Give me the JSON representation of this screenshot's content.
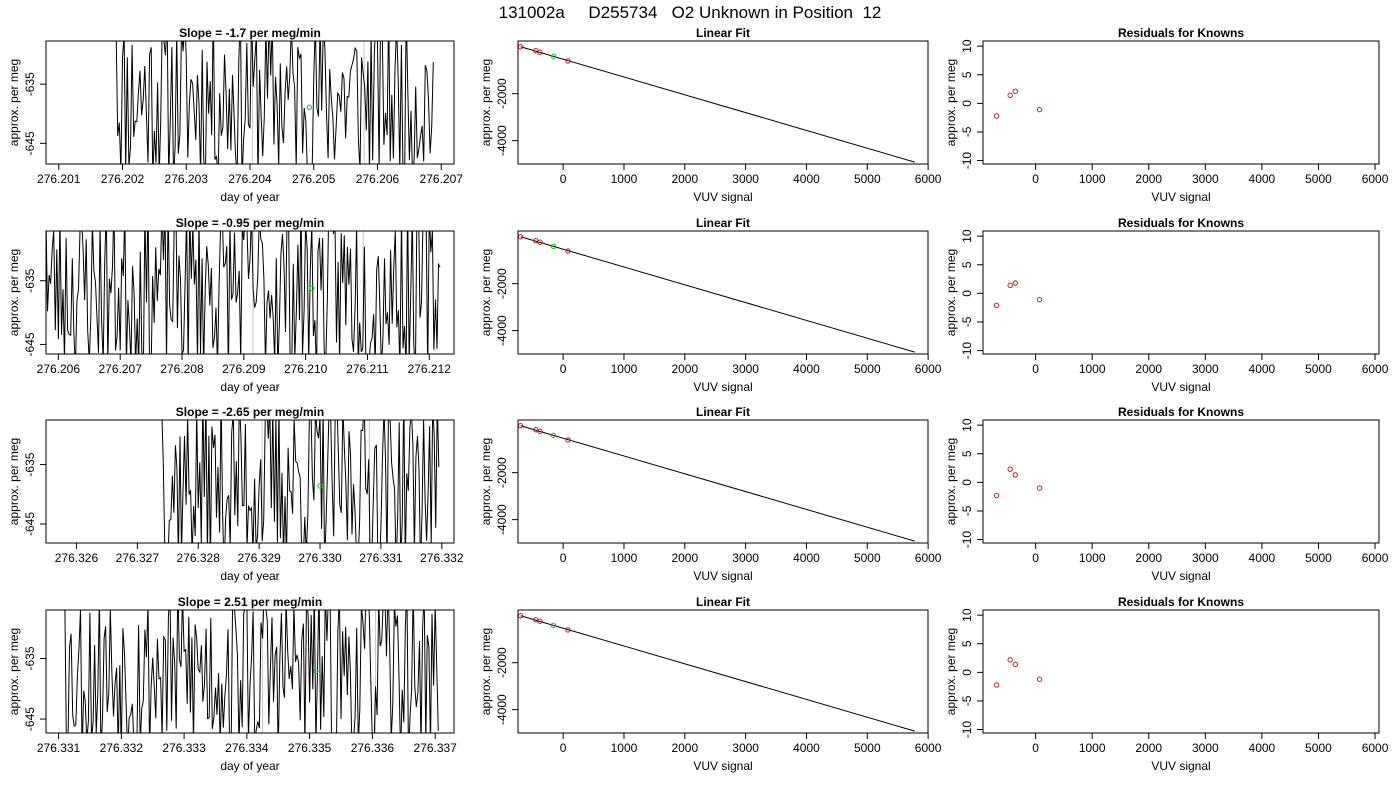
{
  "figure_title": "131002a     D255734   O2 Unknown in Position  12",
  "chart_data": [
    {
      "type": "line",
      "title": "Slope =  -1.7  per meg/min",
      "xlabel": "day of year",
      "ylabel": "approx. per meg",
      "xlim": [
        276.2008,
        276.2072
      ],
      "ylim": [
        -648.5,
        -627.7
      ],
      "xticks": [
        "276.201",
        "276.202",
        "276.203",
        "276.204",
        "276.205",
        "276.206",
        "276.207"
      ],
      "yticks": [
        "-645",
        "-635"
      ],
      "grid": false,
      "trace_start": 276.2019,
      "trace_end": 276.20688,
      "trace_step": 2.5e-05,
      "vlines": [
        276.20404,
        276.20579
      ],
      "highlight_point": {
        "x": 276.20493,
        "y": -638.9
      },
      "series_seed": 11,
      "series_level": -637
    },
    {
      "type": "line",
      "title": "Linear Fit",
      "xlabel": "VUV signal",
      "ylabel": "approx. per meg",
      "xlim": [
        -742,
        5998
      ],
      "ylim": [
        -4995,
        244
      ],
      "xticks": [
        "0",
        "1000",
        "2000",
        "3000",
        "4000",
        "5000",
        "6000"
      ],
      "yticks": [
        "-4000",
        "-2000"
      ],
      "grid": false,
      "fit_line": {
        "x": [
          -700,
          5780
        ],
        "y": [
          0,
          -4915
        ]
      },
      "known_points": {
        "x": [
          -700,
          -450,
          -380,
          80
        ],
        "y": [
          0,
          -170,
          -235,
          -605
        ]
      },
      "unknown_points": {
        "x": [
          -160
        ],
        "y": [
          -410
        ]
      }
    },
    {
      "type": "scatter",
      "title": "Residuals for Knowns",
      "xlabel": "VUV signal",
      "ylabel": "approx. per meg",
      "xlim": [
        -930,
        6070
      ],
      "ylim": [
        -10.6,
        10.9
      ],
      "xticks": [
        "0",
        "1000",
        "2000",
        "3000",
        "4000",
        "5000",
        "6000"
      ],
      "yticks": [
        "-10",
        "-5",
        "0",
        "5",
        "10"
      ],
      "grid": false,
      "x": [
        -690,
        -450,
        -360,
        70
      ],
      "y": [
        -2.2,
        1.4,
        2.1,
        -1.1
      ]
    },
    {
      "type": "line",
      "title": "Slope =  -0.95  per meg/min",
      "xlabel": "day of year",
      "ylabel": "approx. per meg",
      "xlim": [
        276.2058,
        276.2124
      ],
      "ylim": [
        -646.5,
        -627.2
      ],
      "xticks": [
        "276.206",
        "276.207",
        "276.208",
        "276.209",
        "276.210",
        "276.211",
        "276.212"
      ],
      "yticks": [
        "-645",
        "-635"
      ],
      "grid": false,
      "trace_start": 276.2058,
      "trace_end": 276.21218,
      "trace_step": 2.5e-05,
      "vlines": [
        276.20915,
        276.21093
      ],
      "highlight_point": {
        "x": 276.2101,
        "y": -636.2
      },
      "series_seed": 23,
      "series_level": -636
    },
    {
      "type": "line",
      "title": "Linear Fit",
      "xlabel": "VUV signal",
      "ylabel": "approx. per meg",
      "xlim": [
        -742,
        5998
      ],
      "ylim": [
        -4995,
        244
      ],
      "xticks": [
        "0",
        "1000",
        "2000",
        "3000",
        "4000",
        "5000",
        "6000"
      ],
      "yticks": [
        "-4000",
        "-2000"
      ],
      "grid": false,
      "fit_line": {
        "x": [
          -700,
          5780
        ],
        "y": [
          0,
          -4915
        ]
      },
      "known_points": {
        "x": [
          -700,
          -450,
          -380,
          80
        ],
        "y": [
          0,
          -170,
          -235,
          -605
        ]
      },
      "unknown_points": {
        "x": [
          -160
        ],
        "y": [
          -410
        ]
      }
    },
    {
      "type": "scatter",
      "title": "Residuals for Knowns",
      "xlabel": "VUV signal",
      "ylabel": "approx. per meg",
      "xlim": [
        -930,
        6070
      ],
      "ylim": [
        -10.6,
        10.9
      ],
      "xticks": [
        "0",
        "1000",
        "2000",
        "3000",
        "4000",
        "5000",
        "6000"
      ],
      "yticks": [
        "-10",
        "-5",
        "0",
        "5",
        "10"
      ],
      "grid": false,
      "x": [
        -690,
        -450,
        -360,
        70
      ],
      "y": [
        -2.1,
        1.4,
        1.8,
        -1.1
      ]
    },
    {
      "type": "line",
      "title": "Slope =  -2.65  per meg/min",
      "xlabel": "day of year",
      "ylabel": "approx. per meg",
      "xlim": [
        276.3255,
        276.3322
      ],
      "ylim": [
        -648.2,
        -627.5
      ],
      "xticks": [
        "276.326",
        "276.327",
        "276.328",
        "276.329",
        "276.330",
        "276.331",
        "276.332"
      ],
      "yticks": [
        "-645",
        "-635"
      ],
      "grid": false,
      "trace_start": 276.3274,
      "trace_end": 276.33196,
      "trace_step": 2.5e-05,
      "vlines": [
        276.32905,
        276.33081
      ],
      "highlight_point": {
        "x": 276.33,
        "y": -638.6
      },
      "series_seed": 37,
      "series_level": -638
    },
    {
      "type": "line",
      "title": "Linear Fit",
      "xlabel": "VUV signal",
      "ylabel": "approx. per meg",
      "xlim": [
        -742,
        5998
      ],
      "ylim": [
        -4995,
        244
      ],
      "xticks": [
        "0",
        "1000",
        "2000",
        "3000",
        "4000",
        "5000",
        "6000"
      ],
      "yticks": [
        "-4000",
        "-2000"
      ],
      "grid": false,
      "fit_line": {
        "x": [
          -700,
          5780
        ],
        "y": [
          0,
          -4915
        ]
      },
      "known_points": {
        "x": [
          -700,
          -450,
          -380,
          80
        ],
        "y": [
          0,
          -170,
          -235,
          -605
        ]
      },
      "unknown_points": {
        "x": [
          -160
        ],
        "y": [
          -410
        ]
      }
    },
    {
      "type": "scatter",
      "title": "Residuals for Knowns",
      "xlabel": "VUV signal",
      "ylabel": "approx. per meg",
      "xlim": [
        -930,
        6070
      ],
      "ylim": [
        -10.6,
        10.9
      ],
      "xticks": [
        "0",
        "1000",
        "2000",
        "3000",
        "4000",
        "5000",
        "6000"
      ],
      "yticks": [
        "-10",
        "-5",
        "0",
        "5",
        "10"
      ],
      "grid": false,
      "x": [
        -690,
        -450,
        -360,
        70
      ],
      "y": [
        -2.3,
        2.3,
        1.3,
        -1.0
      ]
    },
    {
      "type": "line",
      "title": "Slope =  2.51  per meg/min",
      "xlabel": "day of year",
      "ylabel": "approx. per meg",
      "xlim": [
        276.3308,
        276.3373
      ],
      "ylim": [
        -647.3,
        -627.0
      ],
      "xticks": [
        "276.331",
        "276.332",
        "276.333",
        "276.334",
        "276.335",
        "276.336",
        "276.337"
      ],
      "yticks": [
        "-645",
        "-635"
      ],
      "grid": false,
      "trace_start": 276.3311,
      "trace_end": 276.33705,
      "trace_step": 2.5e-05,
      "vlines": [
        276.33425,
        276.33605
      ],
      "highlight_point": {
        "x": 276.3351,
        "y": -637.1
      },
      "series_seed": 53,
      "series_level": -637
    },
    {
      "type": "line",
      "title": "Linear Fit",
      "xlabel": "VUV signal",
      "ylabel": "approx. per meg",
      "xlim": [
        -742,
        5998
      ],
      "ylim": [
        -4995,
        244
      ],
      "xticks": [
        "0",
        "1000",
        "2000",
        "3000",
        "4000",
        "5000",
        "6000"
      ],
      "yticks": [
        "-4000",
        "-2000"
      ],
      "grid": false,
      "fit_line": {
        "x": [
          -700,
          5780
        ],
        "y": [
          0,
          -4915
        ]
      },
      "known_points": {
        "x": [
          -700,
          -450,
          -380,
          80
        ],
        "y": [
          0,
          -170,
          -235,
          -605
        ]
      },
      "unknown_points": {
        "x": [
          -160
        ],
        "y": [
          -410
        ]
      }
    },
    {
      "type": "scatter",
      "title": "Residuals for Knowns",
      "xlabel": "VUV signal",
      "ylabel": "approx. per meg",
      "xlim": [
        -930,
        6070
      ],
      "ylim": [
        -10.6,
        10.9
      ],
      "xticks": [
        "0",
        "1000",
        "2000",
        "3000",
        "4000",
        "5000",
        "6000"
      ],
      "yticks": [
        "-10",
        "-5",
        "0",
        "5",
        "10"
      ],
      "grid": false,
      "x": [
        -690,
        -450,
        -360,
        70
      ],
      "y": [
        -2.2,
        2.2,
        1.4,
        -1.2
      ]
    }
  ],
  "colors": {
    "axis": "#000000",
    "trace": "#000000",
    "vline": "#c8c8c8",
    "known_point": "#b22222",
    "unknown_point": "#00cc00"
  }
}
